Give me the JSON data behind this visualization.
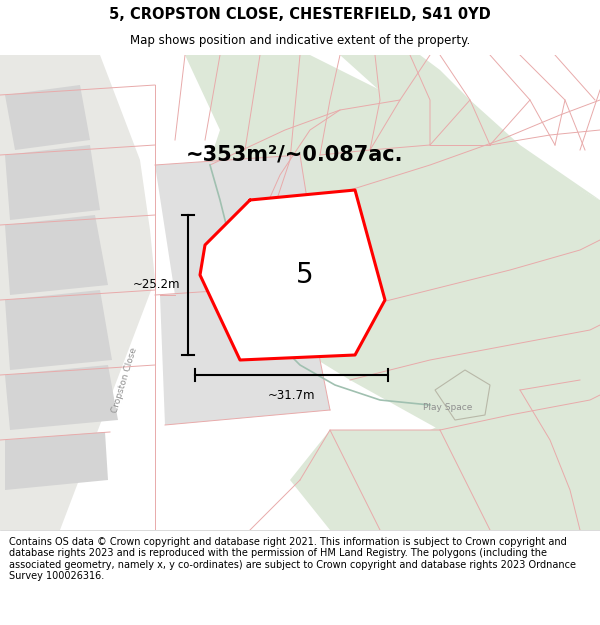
{
  "title": "5, CROPSTON CLOSE, CHESTERFIELD, S41 0YD",
  "subtitle": "Map shows position and indicative extent of the property.",
  "area_text": "~353m²/~0.087ac.",
  "label_5": "5",
  "dim_h": "~25.2m",
  "dim_w": "~31.7m",
  "road_label": "Cropston Close",
  "play_space_label": "Play Space",
  "footer": "Contains OS data © Crown copyright and database right 2021. This information is subject to Crown copyright and database rights 2023 and is reproduced with the permission of HM Land Registry. The polygons (including the associated geometry, namely x, y co-ordinates) are subject to Crown copyright and database rights 2023 Ordnance Survey 100026316.",
  "bg_map": "#f0f0ec",
  "green_area_color": "#dde8d8",
  "green_area_dark": "#c8d8c4",
  "plot_fill": "#e8e8e8",
  "plot_edge": "#ff0000",
  "gray_block": "#d4d4d4",
  "white_bg": "#ffffff",
  "road_bg": "#e8e8e4",
  "bound_color": "#e8aaaa",
  "title_fontsize": 10.5,
  "subtitle_fontsize": 8.5,
  "footer_fontsize": 7.0
}
